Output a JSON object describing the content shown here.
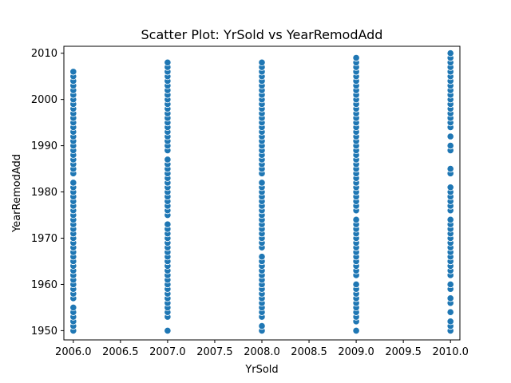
{
  "chart_data": {
    "type": "scatter",
    "title": "Scatter Plot: YrSold vs YearRemodAdd",
    "xlabel": "YrSold",
    "ylabel": "YearRemodAdd",
    "xlim": [
      2005.9,
      2010.1
    ],
    "ylim": [
      1948.0,
      2011.5
    ],
    "xticks": [
      "2006.0",
      "2006.5",
      "2007.0",
      "2007.5",
      "2008.0",
      "2008.5",
      "2009.0",
      "2009.5",
      "2010.0"
    ],
    "yticks": [
      "1950",
      "1960",
      "1970",
      "1980",
      "1990",
      "2000",
      "2010"
    ],
    "grid": false,
    "marker_color": "#1f77b4",
    "marker_edge_color": "#ffffff",
    "series": [
      {
        "points_by_x": [
          {
            "x": 2006,
            "y": [
              1950,
              1951,
              1952,
              1953,
              1954,
              1955,
              1957,
              1958,
              1959,
              1960,
              1961,
              1962,
              1963,
              1964,
              1965,
              1966,
              1967,
              1968,
              1969,
              1970,
              1971,
              1972,
              1973,
              1974,
              1975,
              1976,
              1977,
              1978,
              1979,
              1980,
              1981,
              1982,
              1984,
              1985,
              1986,
              1987,
              1988,
              1989,
              1990,
              1991,
              1992,
              1993,
              1994,
              1995,
              1996,
              1997,
              1998,
              1999,
              2000,
              2001,
              2002,
              2003,
              2004,
              2005,
              2006
            ]
          },
          {
            "x": 2007,
            "y": [
              1950,
              1953,
              1954,
              1955,
              1956,
              1957,
              1958,
              1959,
              1960,
              1961,
              1962,
              1963,
              1964,
              1965,
              1966,
              1967,
              1968,
              1969,
              1970,
              1971,
              1972,
              1973,
              1975,
              1976,
              1977,
              1978,
              1979,
              1980,
              1981,
              1982,
              1983,
              1984,
              1985,
              1986,
              1987,
              1989,
              1990,
              1991,
              1992,
              1993,
              1994,
              1995,
              1996,
              1997,
              1998,
              1999,
              2000,
              2001,
              2002,
              2003,
              2004,
              2005,
              2006,
              2007,
              2008
            ]
          },
          {
            "x": 2008,
            "y": [
              1950,
              1951,
              1953,
              1954,
              1955,
              1956,
              1957,
              1958,
              1959,
              1960,
              1961,
              1962,
              1963,
              1964,
              1965,
              1966,
              1968,
              1969,
              1970,
              1971,
              1972,
              1973,
              1974,
              1975,
              1976,
              1977,
              1978,
              1979,
              1980,
              1981,
              1982,
              1984,
              1985,
              1986,
              1987,
              1988,
              1989,
              1990,
              1991,
              1992,
              1993,
              1994,
              1995,
              1996,
              1997,
              1998,
              1999,
              2000,
              2001,
              2002,
              2003,
              2004,
              2005,
              2006,
              2007,
              2008
            ]
          },
          {
            "x": 2009,
            "y": [
              1950,
              1952,
              1953,
              1954,
              1955,
              1956,
              1957,
              1958,
              1959,
              1960,
              1962,
              1963,
              1964,
              1965,
              1966,
              1967,
              1968,
              1969,
              1970,
              1971,
              1972,
              1973,
              1974,
              1976,
              1977,
              1978,
              1979,
              1980,
              1981,
              1982,
              1983,
              1984,
              1985,
              1986,
              1987,
              1988,
              1989,
              1990,
              1991,
              1992,
              1993,
              1994,
              1995,
              1996,
              1997,
              1998,
              1999,
              2000,
              2001,
              2002,
              2003,
              2004,
              2005,
              2006,
              2007,
              2008,
              2009
            ]
          },
          {
            "x": 2010,
            "y": [
              1950,
              1951,
              1952,
              1954,
              1956,
              1957,
              1959,
              1960,
              1962,
              1963,
              1964,
              1965,
              1966,
              1967,
              1968,
              1969,
              1970,
              1971,
              1972,
              1973,
              1974,
              1976,
              1977,
              1978,
              1979,
              1980,
              1981,
              1984,
              1985,
              1989,
              1990,
              1992,
              1994,
              1995,
              1996,
              1997,
              1998,
              1999,
              2000,
              2001,
              2002,
              2003,
              2004,
              2005,
              2006,
              2007,
              2008,
              2009,
              2010
            ]
          }
        ]
      }
    ]
  }
}
